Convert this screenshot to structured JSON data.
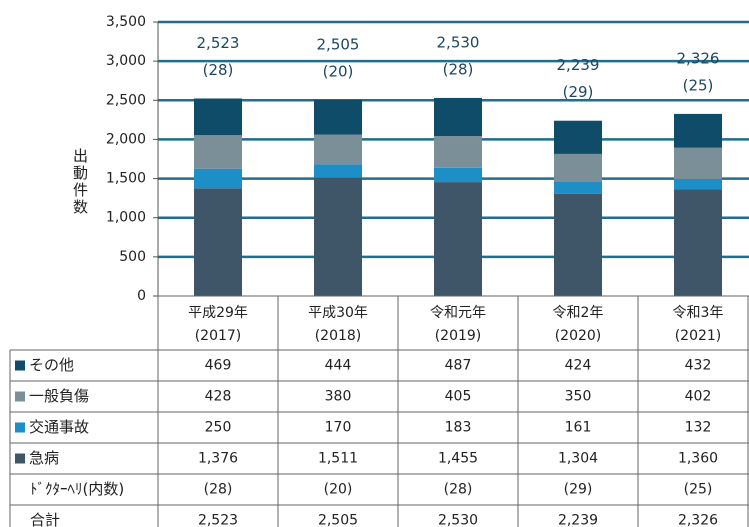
{
  "chart_data": {
    "type": "bar",
    "stacked": true,
    "y_label": "出動件数",
    "categories": [
      [
        "平成29年",
        "(2017)"
      ],
      [
        "平成30年",
        "(2018)"
      ],
      [
        "令和元年",
        "(2019)"
      ],
      [
        "令和2年",
        "(2020)"
      ],
      [
        "令和3年",
        "(2021)"
      ]
    ],
    "series": [
      {
        "name": "急病",
        "color": "#3e5668",
        "values": [
          1376,
          1511,
          1455,
          1304,
          1360
        ],
        "value_labels": [
          "1,376",
          "1,511",
          "1,455",
          "1,304",
          "1,360"
        ]
      },
      {
        "name": "交通事故",
        "color": "#1e8fc6",
        "values": [
          250,
          170,
          183,
          161,
          132
        ],
        "value_labels": [
          "250",
          "170",
          "183",
          "161",
          "132"
        ]
      },
      {
        "name": "一般負傷",
        "color": "#7b8f99",
        "values": [
          428,
          380,
          405,
          350,
          402
        ],
        "value_labels": [
          "428",
          "380",
          "405",
          "350",
          "402"
        ]
      },
      {
        "name": "その他",
        "color": "#0f4c6a",
        "values": [
          469,
          444,
          487,
          424,
          432
        ],
        "value_labels": [
          "469",
          "444",
          "487",
          "424",
          "432"
        ]
      }
    ],
    "doctor_heli": {
      "name": "ﾄﾞｸﾀｰﾍﾘ(内数)",
      "values": [
        28,
        20,
        28,
        29,
        25
      ],
      "value_labels": [
        "(28)",
        "(20)",
        "(28)",
        "(29)",
        "(25)"
      ]
    },
    "total": {
      "name": "合計",
      "values": [
        2523,
        2505,
        2530,
        2239,
        2326
      ],
      "value_labels": [
        "2,523",
        "2,505",
        "2,530",
        "2,239",
        "2,326"
      ]
    },
    "ylim": [
      0,
      3500
    ],
    "yticks": [
      0,
      {
        "value": 500,
        "label": "500"
      },
      {
        "value": 1000,
        "label": "1,000"
      },
      {
        "value": 1500,
        "label": "1,500"
      },
      {
        "value": 2000,
        "label": "2,000"
      },
      {
        "value": 2500,
        "label": "2,500"
      },
      {
        "value": 3000,
        "label": "3,000"
      },
      {
        "value": 3500,
        "label": "3,500"
      }
    ],
    "grid": true
  }
}
